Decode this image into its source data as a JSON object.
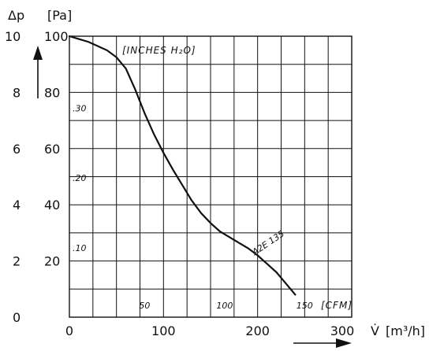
{
  "chart_data": {
    "type": "line",
    "title": "",
    "xlabel": "V̇",
    "x_unit": "[m³/h]",
    "ylabel": "Δp",
    "y_unit": "[Pa]",
    "xlim": [
      0,
      300
    ],
    "ylim_pa": [
      0,
      100
    ],
    "x_ticks": [
      "0",
      "100",
      "200",
      "300"
    ],
    "y_ticks_pa": [
      "20",
      "40",
      "60",
      "80",
      "100"
    ],
    "y_ticks_mmwg": [
      "0",
      "2",
      "4",
      "6",
      "8",
      "10"
    ],
    "inches_h2o_label": "[INCHES H₂O]",
    "inches_h2o_ticks": [
      ".10",
      ".20",
      ".30"
    ],
    "inches_h2o_values_pa": [
      24.9,
      49.8,
      74.7
    ],
    "cfm_label": "[CFM]",
    "cfm_ticks": [
      "50",
      "100",
      "150"
    ],
    "cfm_values_m3h": [
      85,
      170,
      255
    ],
    "series": [
      {
        "name": "A2E 135",
        "x": [
          0,
          10,
          20,
          30,
          40,
          50,
          60,
          70,
          80,
          90,
          100,
          110,
          120,
          130,
          140,
          150,
          160,
          170,
          180,
          190,
          200,
          210,
          220,
          230,
          240
        ],
        "y": [
          100,
          99,
          98,
          96.5,
          95,
          92.5,
          88.5,
          81,
          72.5,
          65,
          58.5,
          52.5,
          47,
          41.5,
          37,
          33.5,
          30.5,
          28.5,
          26.5,
          24.5,
          22,
          19,
          16,
          12,
          8
        ]
      }
    ],
    "grid": true
  }
}
